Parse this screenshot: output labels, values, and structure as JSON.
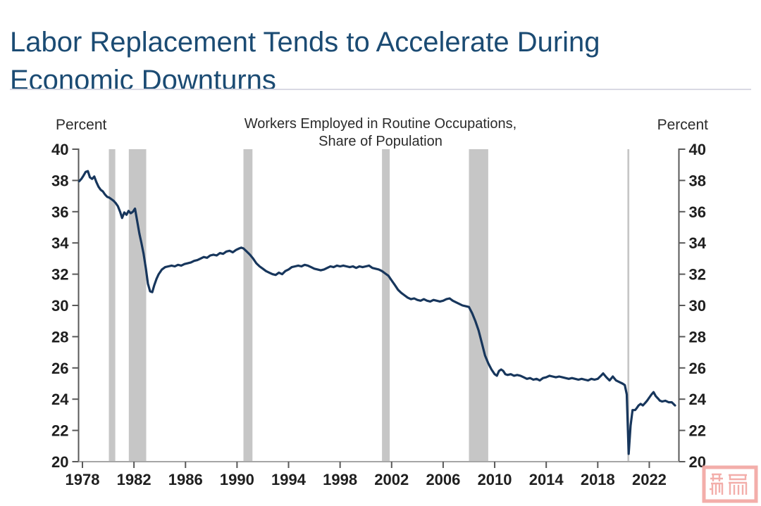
{
  "page": {
    "title_line1": "Labor Replacement Tends to Accelerate During",
    "title_line2": "Economic Downturns",
    "title_color": "#1B4B73"
  },
  "chart": {
    "left_axis_unit": "Percent",
    "right_axis_unit": "Percent",
    "title_line1": "Workers Employed in Routine Occupations,",
    "title_line2": "Share of Population"
  },
  "watermark": {
    "description": "pink seal-stamp watermark with two seal-script characters",
    "color": "#F2A09C"
  },
  "chart_data": {
    "type": "line",
    "title": "Workers Employed in Routine Occupations, Share of Population",
    "ylabel": "Percent",
    "ylim": [
      20,
      40
    ],
    "xlim": [
      1977.7,
      2024.3
    ],
    "yticks": [
      20,
      22,
      24,
      26,
      28,
      30,
      32,
      34,
      36,
      38,
      40
    ],
    "xticks": [
      1978,
      1982,
      1986,
      1990,
      1994,
      1998,
      2002,
      2006,
      2010,
      2014,
      2018,
      2022
    ],
    "grid": false,
    "legend": "none",
    "tick_label_color": "#1f1f1f",
    "axis_color": "#595959",
    "baseline_color": "#A6A6A6",
    "recession_color": "#C6C6C6",
    "recessions": [
      {
        "start": 1980.05,
        "end": 1980.55
      },
      {
        "start": 1981.6,
        "end": 1982.95
      },
      {
        "start": 1990.5,
        "end": 1991.2
      },
      {
        "start": 2001.25,
        "end": 2001.85
      },
      {
        "start": 2008.0,
        "end": 2009.5
      },
      {
        "start": 2020.3,
        "end": 2020.45
      }
    ],
    "series": [
      {
        "name": "Workers employed in routine occupations, share of population",
        "color": "#17365C",
        "points": [
          [
            1977.75,
            37.95
          ],
          [
            1977.92,
            38.1
          ],
          [
            1978.08,
            38.3
          ],
          [
            1978.25,
            38.55
          ],
          [
            1978.42,
            38.6
          ],
          [
            1978.58,
            38.2
          ],
          [
            1978.75,
            38.1
          ],
          [
            1978.92,
            38.25
          ],
          [
            1979.08,
            37.9
          ],
          [
            1979.25,
            37.6
          ],
          [
            1979.42,
            37.4
          ],
          [
            1979.58,
            37.3
          ],
          [
            1979.75,
            37.1
          ],
          [
            1979.92,
            36.95
          ],
          [
            1980.08,
            36.9
          ],
          [
            1980.25,
            36.8
          ],
          [
            1980.42,
            36.7
          ],
          [
            1980.58,
            36.55
          ],
          [
            1980.75,
            36.35
          ],
          [
            1980.92,
            36.0
          ],
          [
            1981.08,
            35.6
          ],
          [
            1981.25,
            35.95
          ],
          [
            1981.42,
            35.8
          ],
          [
            1981.58,
            36.05
          ],
          [
            1981.75,
            35.9
          ],
          [
            1981.92,
            36.0
          ],
          [
            1982.08,
            36.2
          ],
          [
            1982.25,
            35.4
          ],
          [
            1982.42,
            34.6
          ],
          [
            1982.58,
            34.0
          ],
          [
            1982.75,
            33.3
          ],
          [
            1982.92,
            32.4
          ],
          [
            1983.08,
            31.4
          ],
          [
            1983.25,
            30.9
          ],
          [
            1983.42,
            30.85
          ],
          [
            1983.58,
            31.3
          ],
          [
            1983.75,
            31.7
          ],
          [
            1983.92,
            32.0
          ],
          [
            1984.17,
            32.3
          ],
          [
            1984.42,
            32.45
          ],
          [
            1984.67,
            32.5
          ],
          [
            1984.92,
            32.55
          ],
          [
            1985.17,
            32.5
          ],
          [
            1985.42,
            32.6
          ],
          [
            1985.67,
            32.55
          ],
          [
            1985.92,
            32.65
          ],
          [
            1986.17,
            32.7
          ],
          [
            1986.42,
            32.75
          ],
          [
            1986.67,
            32.85
          ],
          [
            1986.92,
            32.9
          ],
          [
            1987.17,
            33.0
          ],
          [
            1987.42,
            33.1
          ],
          [
            1987.67,
            33.05
          ],
          [
            1987.92,
            33.2
          ],
          [
            1988.17,
            33.25
          ],
          [
            1988.42,
            33.2
          ],
          [
            1988.67,
            33.35
          ],
          [
            1988.92,
            33.3
          ],
          [
            1989.17,
            33.45
          ],
          [
            1989.42,
            33.5
          ],
          [
            1989.67,
            33.4
          ],
          [
            1989.92,
            33.55
          ],
          [
            1990.17,
            33.65
          ],
          [
            1990.33,
            33.7
          ],
          [
            1990.5,
            33.65
          ],
          [
            1990.75,
            33.45
          ],
          [
            1991.0,
            33.25
          ],
          [
            1991.25,
            33.0
          ],
          [
            1991.5,
            32.7
          ],
          [
            1991.75,
            32.5
          ],
          [
            1992.0,
            32.35
          ],
          [
            1992.25,
            32.2
          ],
          [
            1992.5,
            32.1
          ],
          [
            1992.75,
            32.0
          ],
          [
            1993.0,
            31.95
          ],
          [
            1993.25,
            32.1
          ],
          [
            1993.5,
            32.0
          ],
          [
            1993.75,
            32.2
          ],
          [
            1994.0,
            32.3
          ],
          [
            1994.25,
            32.45
          ],
          [
            1994.5,
            32.5
          ],
          [
            1994.75,
            32.55
          ],
          [
            1995.0,
            32.5
          ],
          [
            1995.25,
            32.6
          ],
          [
            1995.5,
            32.55
          ],
          [
            1995.75,
            32.45
          ],
          [
            1996.0,
            32.35
          ],
          [
            1996.25,
            32.3
          ],
          [
            1996.5,
            32.25
          ],
          [
            1996.75,
            32.3
          ],
          [
            1997.0,
            32.4
          ],
          [
            1997.25,
            32.5
          ],
          [
            1997.5,
            32.45
          ],
          [
            1997.75,
            32.55
          ],
          [
            1998.0,
            32.5
          ],
          [
            1998.25,
            32.55
          ],
          [
            1998.5,
            32.5
          ],
          [
            1998.75,
            32.45
          ],
          [
            1999.0,
            32.5
          ],
          [
            1999.25,
            32.4
          ],
          [
            1999.5,
            32.5
          ],
          [
            1999.75,
            32.45
          ],
          [
            2000.0,
            32.5
          ],
          [
            2000.25,
            32.55
          ],
          [
            2000.5,
            32.4
          ],
          [
            2000.75,
            32.35
          ],
          [
            2001.0,
            32.3
          ],
          [
            2001.25,
            32.2
          ],
          [
            2001.5,
            32.05
          ],
          [
            2001.75,
            31.9
          ],
          [
            2002.0,
            31.6
          ],
          [
            2002.25,
            31.3
          ],
          [
            2002.5,
            31.0
          ],
          [
            2002.75,
            30.8
          ],
          [
            2003.0,
            30.65
          ],
          [
            2003.25,
            30.5
          ],
          [
            2003.5,
            30.4
          ],
          [
            2003.75,
            30.45
          ],
          [
            2004.0,
            30.35
          ],
          [
            2004.25,
            30.3
          ],
          [
            2004.5,
            30.4
          ],
          [
            2004.75,
            30.3
          ],
          [
            2005.0,
            30.25
          ],
          [
            2005.25,
            30.35
          ],
          [
            2005.5,
            30.3
          ],
          [
            2005.75,
            30.25
          ],
          [
            2006.0,
            30.3
          ],
          [
            2006.25,
            30.4
          ],
          [
            2006.5,
            30.45
          ],
          [
            2006.75,
            30.3
          ],
          [
            2007.0,
            30.2
          ],
          [
            2007.25,
            30.1
          ],
          [
            2007.5,
            30.0
          ],
          [
            2007.75,
            29.95
          ],
          [
            2008.0,
            29.9
          ],
          [
            2008.25,
            29.5
          ],
          [
            2008.5,
            29.0
          ],
          [
            2008.75,
            28.4
          ],
          [
            2009.0,
            27.6
          ],
          [
            2009.25,
            26.8
          ],
          [
            2009.5,
            26.3
          ],
          [
            2009.75,
            25.9
          ],
          [
            2010.0,
            25.6
          ],
          [
            2010.17,
            25.5
          ],
          [
            2010.33,
            25.8
          ],
          [
            2010.5,
            25.9
          ],
          [
            2010.67,
            25.8
          ],
          [
            2010.83,
            25.6
          ],
          [
            2011.0,
            25.55
          ],
          [
            2011.25,
            25.6
          ],
          [
            2011.5,
            25.5
          ],
          [
            2011.75,
            25.55
          ],
          [
            2012.0,
            25.5
          ],
          [
            2012.25,
            25.4
          ],
          [
            2012.5,
            25.3
          ],
          [
            2012.75,
            25.35
          ],
          [
            2013.0,
            25.25
          ],
          [
            2013.25,
            25.3
          ],
          [
            2013.5,
            25.2
          ],
          [
            2013.75,
            25.35
          ],
          [
            2014.0,
            25.4
          ],
          [
            2014.25,
            25.5
          ],
          [
            2014.5,
            25.45
          ],
          [
            2014.75,
            25.4
          ],
          [
            2015.0,
            25.45
          ],
          [
            2015.25,
            25.4
          ],
          [
            2015.5,
            25.35
          ],
          [
            2015.75,
            25.3
          ],
          [
            2016.0,
            25.35
          ],
          [
            2016.25,
            25.3
          ],
          [
            2016.5,
            25.25
          ],
          [
            2016.75,
            25.3
          ],
          [
            2017.0,
            25.25
          ],
          [
            2017.25,
            25.2
          ],
          [
            2017.5,
            25.3
          ],
          [
            2017.75,
            25.25
          ],
          [
            2018.0,
            25.3
          ],
          [
            2018.25,
            25.5
          ],
          [
            2018.42,
            25.65
          ],
          [
            2018.67,
            25.4
          ],
          [
            2018.92,
            25.2
          ],
          [
            2019.17,
            25.45
          ],
          [
            2019.42,
            25.2
          ],
          [
            2019.67,
            25.1
          ],
          [
            2019.92,
            25.0
          ],
          [
            2020.1,
            24.9
          ],
          [
            2020.25,
            24.3
          ],
          [
            2020.4,
            20.5
          ],
          [
            2020.55,
            22.3
          ],
          [
            2020.7,
            23.3
          ],
          [
            2020.9,
            23.3
          ],
          [
            2021.0,
            23.4
          ],
          [
            2021.17,
            23.6
          ],
          [
            2021.33,
            23.7
          ],
          [
            2021.5,
            23.6
          ],
          [
            2021.67,
            23.75
          ],
          [
            2021.83,
            23.9
          ],
          [
            2022.0,
            24.1
          ],
          [
            2022.17,
            24.3
          ],
          [
            2022.33,
            24.45
          ],
          [
            2022.5,
            24.2
          ],
          [
            2022.67,
            24.05
          ],
          [
            2022.83,
            23.9
          ],
          [
            2023.0,
            23.85
          ],
          [
            2023.25,
            23.9
          ],
          [
            2023.5,
            23.8
          ],
          [
            2023.75,
            23.8
          ],
          [
            2024.0,
            23.6
          ]
        ]
      }
    ]
  }
}
